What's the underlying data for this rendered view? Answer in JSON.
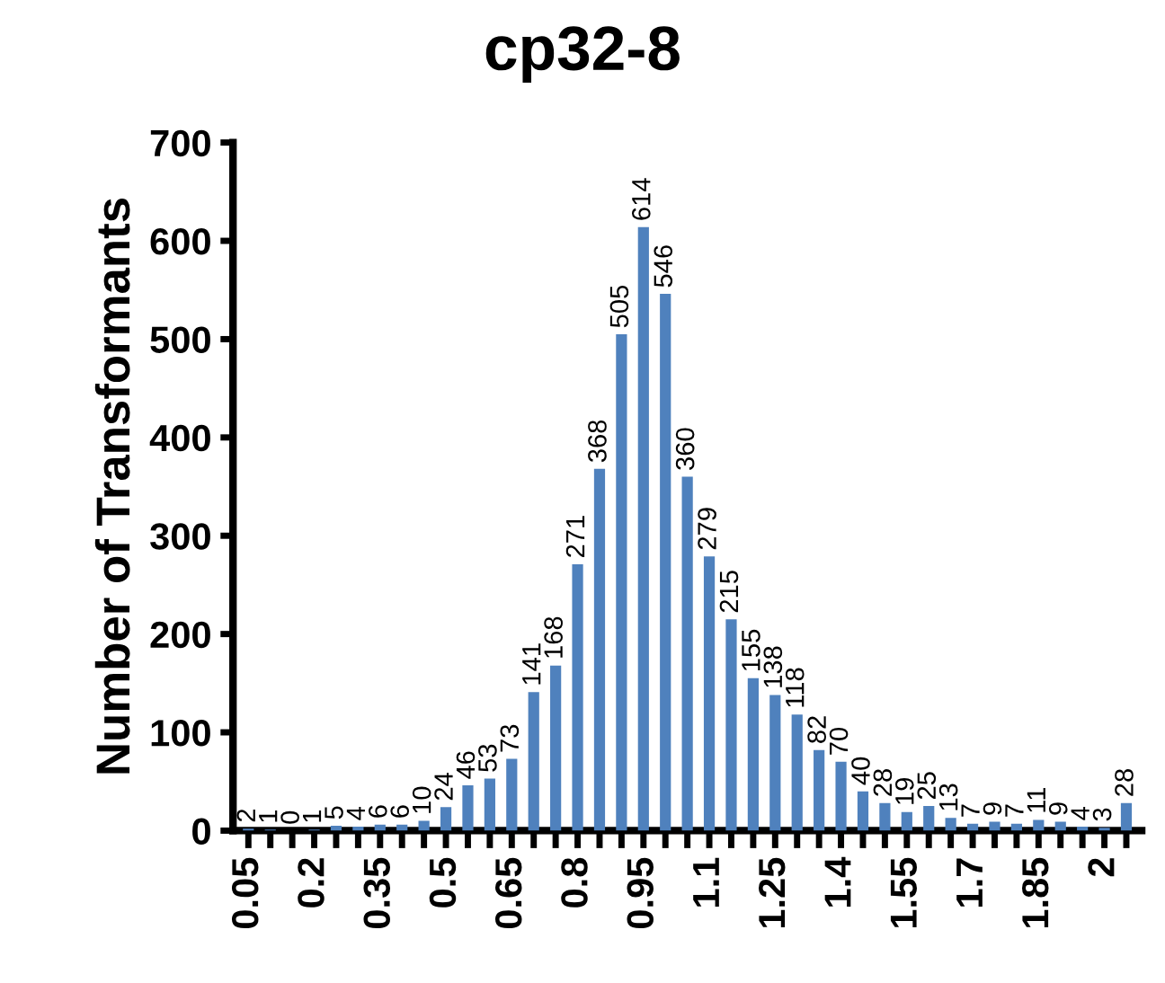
{
  "chart_data": {
    "type": "bar",
    "title": "cp32-8",
    "ylabel": "Number of Transformants",
    "categories": [
      "0.05",
      null,
      null,
      "0.2",
      null,
      null,
      "0.35",
      null,
      null,
      "0.5",
      null,
      null,
      "0.65",
      null,
      null,
      "0.8",
      null,
      null,
      "0.95",
      null,
      null,
      "1.1",
      null,
      null,
      "1.25",
      null,
      null,
      "1.4",
      null,
      null,
      "1.55",
      null,
      null,
      "1.7",
      null,
      null,
      "1.85",
      null,
      null,
      "2",
      null
    ],
    "values": [
      2,
      1,
      0,
      1,
      5,
      4,
      6,
      6,
      10,
      24,
      46,
      53,
      73,
      141,
      168,
      271,
      368,
      505,
      614,
      546,
      360,
      279,
      215,
      155,
      138,
      118,
      82,
      70,
      40,
      28,
      19,
      25,
      13,
      7,
      9,
      7,
      11,
      9,
      4,
      3,
      28
    ],
    "color": "#4f81bd",
    "ylim": [
      0,
      700
    ],
    "yticks": [
      0,
      100,
      200,
      300,
      400,
      500,
      600,
      700
    ],
    "data_labels": true,
    "grid": false,
    "legend": false
  }
}
